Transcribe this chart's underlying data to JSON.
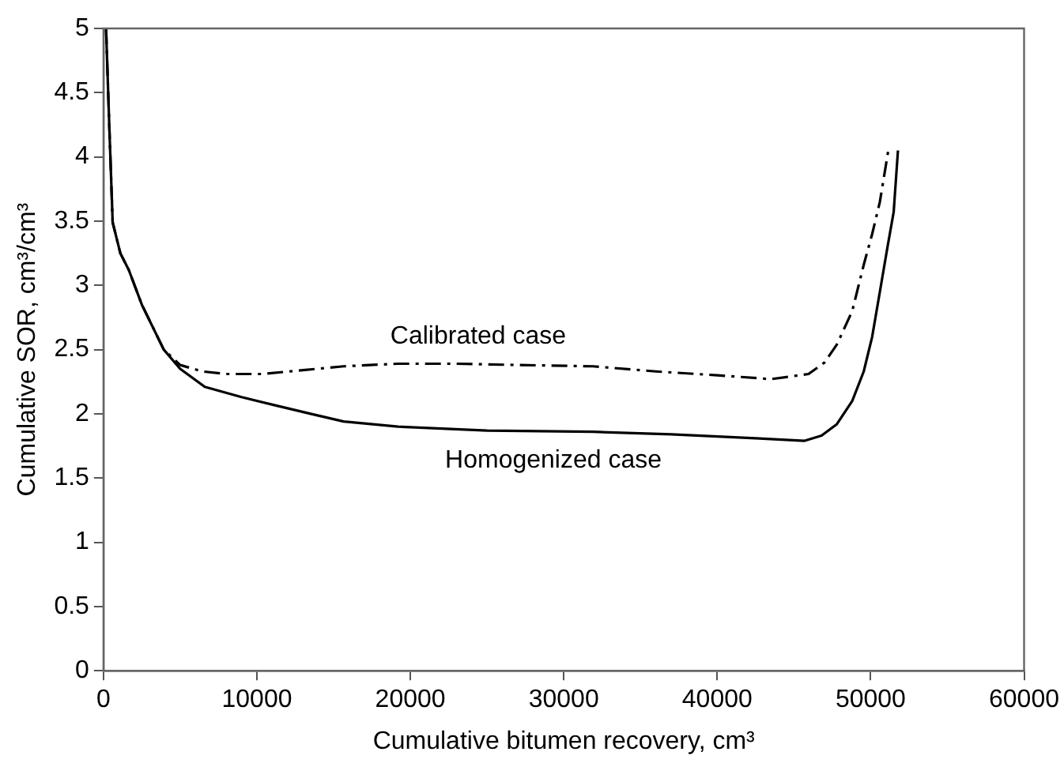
{
  "chart_data": {
    "type": "line",
    "xlabel": "Cumulative bitumen recovery, cm³",
    "ylabel": "Cumulative SOR, cm³/cm³",
    "xlim": [
      0,
      60000
    ],
    "xticks": [
      0,
      10000,
      20000,
      30000,
      40000,
      50000,
      60000
    ],
    "ylim": [
      0,
      5
    ],
    "yticks": [
      0,
      {
        "value": 0.5,
        "label": "0.5"
      },
      1,
      {
        "value": 1.5,
        "label": "1.5"
      },
      2,
      {
        "value": 2.5,
        "label": "2.5"
      },
      3,
      {
        "value": 3.5,
        "label": "3.5"
      },
      4,
      {
        "value": 4.5,
        "label": "4.5"
      },
      5
    ],
    "grid": false,
    "legend": false,
    "marker": "none",
    "series": [
      {
        "name": "Calibrated case",
        "color": "#000000",
        "line_style": "dashed",
        "x": [
          170,
          380,
          600,
          1100,
          1650,
          2500,
          3930,
          5000,
          6450,
          8000,
          10350,
          13000,
          15650,
          19200,
          23000,
          27000,
          31900,
          36000,
          40000,
          43500,
          45950,
          47000,
          47800,
          48800,
          49550,
          50100,
          50600,
          51150
        ],
        "values": [
          5,
          4.24,
          3.49,
          3.25,
          3.12,
          2.85,
          2.5,
          2.38,
          2.33,
          2.31,
          2.31,
          2.34,
          2.37,
          2.39,
          2.39,
          2.38,
          2.37,
          2.33,
          2.3,
          2.27,
          2.31,
          2.4,
          2.54,
          2.8,
          3.16,
          3.4,
          3.65,
          4.05
        ]
      },
      {
        "name": "Homogenized case",
        "color": "#000000",
        "line_style": "solid",
        "x": [
          170,
          380,
          600,
          1100,
          1650,
          2500,
          3930,
          5000,
          6600,
          9000,
          11400,
          13500,
          15650,
          19200,
          25000,
          31900,
          37000,
          42500,
          45700,
          46800,
          47800,
          48800,
          49550,
          50100,
          50600,
          51100,
          51500,
          51780
        ],
        "values": [
          5,
          4.24,
          3.49,
          3.25,
          3.12,
          2.85,
          2.5,
          2.35,
          2.21,
          2.13,
          2.06,
          2.0,
          1.94,
          1.9,
          1.87,
          1.86,
          1.84,
          1.81,
          1.79,
          1.83,
          1.92,
          2.1,
          2.33,
          2.6,
          2.95,
          3.3,
          3.57,
          4.05
        ]
      }
    ]
  }
}
